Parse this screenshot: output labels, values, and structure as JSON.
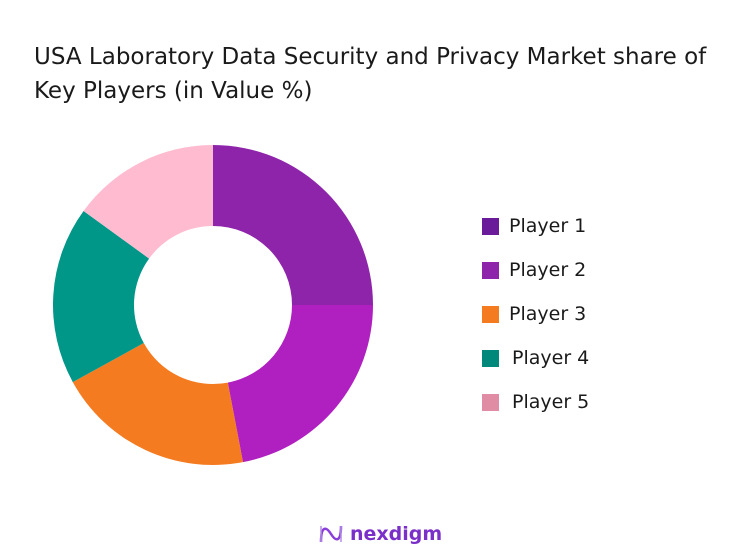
{
  "chart_data": {
    "type": "pie",
    "variant": "donut",
    "title": "USA Laboratory Data Security and Privacy Market share of Key Players (in Value %)",
    "categories": [
      "Player 1",
      "Player 2",
      "Player 3",
      "Player 4",
      "Player 5"
    ],
    "values": [
      25,
      22,
      20,
      18,
      15
    ],
    "unit": "%",
    "slice_colors": [
      "#8E24AA",
      "#B01FBF",
      "#F47B20",
      "#009688",
      "#FFBBD0"
    ],
    "legend_colors": [
      "#6A1B9A",
      "#8E24AA",
      "#F47B20",
      "#00897B",
      "#E08CA5"
    ],
    "legend_position": "right",
    "start_angle": "top, clockwise"
  },
  "branding": {
    "logo_text": "nexdigm"
  }
}
